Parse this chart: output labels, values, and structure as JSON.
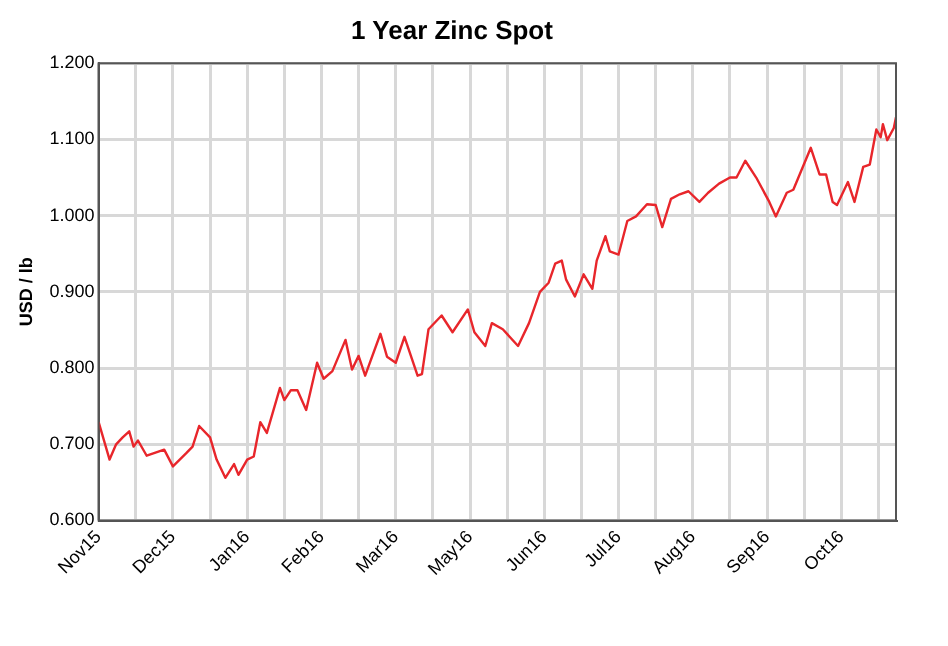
{
  "chart_data": {
    "type": "line",
    "title": "1 Year Zinc Spot",
    "ylabel": "USD / lb",
    "grid": true,
    "legend": false,
    "marker": "none",
    "line_style": "solid",
    "xlim": [
      "2015-11-13",
      "2016-11-12"
    ],
    "xticks": [
      {
        "value": "2015-11-13",
        "label": "Nov15"
      },
      {
        "value": "2015-11-30",
        "label": null
      },
      {
        "value": "2015-12-17",
        "label": "Dec15"
      },
      {
        "value": "2016-01-03",
        "label": null
      },
      {
        "value": "2016-01-20",
        "label": "Jan16"
      },
      {
        "value": "2016-02-06",
        "label": null
      },
      {
        "value": "2016-02-23",
        "label": "Feb16"
      },
      {
        "value": "2016-03-11",
        "label": null
      },
      {
        "value": "2016-03-28",
        "label": "Mar16"
      },
      {
        "value": "2016-04-14",
        "label": null
      },
      {
        "value": "2016-05-01",
        "label": "May16"
      },
      {
        "value": "2016-05-18",
        "label": null
      },
      {
        "value": "2016-06-04",
        "label": "Jun16"
      },
      {
        "value": "2016-06-21",
        "label": null
      },
      {
        "value": "2016-07-08",
        "label": "Jul16"
      },
      {
        "value": "2016-07-25",
        "label": null
      },
      {
        "value": "2016-08-11",
        "label": "Aug16"
      },
      {
        "value": "2016-08-28",
        "label": null
      },
      {
        "value": "2016-09-14",
        "label": "Sep16"
      },
      {
        "value": "2016-10-01",
        "label": null
      },
      {
        "value": "2016-10-18",
        "label": "Oct16"
      },
      {
        "value": "2016-11-04",
        "label": null
      }
    ],
    "ylim": [
      0.6,
      1.2
    ],
    "yticks": [
      {
        "value": 0.6,
        "label": "0.600"
      },
      {
        "value": 0.7,
        "label": "0.700"
      },
      {
        "value": 0.8,
        "label": "0.800"
      },
      {
        "value": 0.9,
        "label": "0.900"
      },
      {
        "value": 1.0,
        "label": "1.000"
      },
      {
        "value": 1.1,
        "label": "1.100"
      },
      {
        "value": 1.2,
        "label": "1.200"
      }
    ],
    "series": [
      {
        "color": "#e8262b",
        "x": [
          "2015-11-13",
          "2015-11-18",
          "2015-11-21",
          "2015-11-24",
          "2015-11-27",
          "2015-11-29",
          "2015-12-01",
          "2015-12-05",
          "2015-12-13",
          "2015-12-17",
          "2015-12-23",
          "2015-12-26",
          "2015-12-29",
          "2016-01-03",
          "2016-01-06",
          "2016-01-10",
          "2016-01-14",
          "2016-01-16",
          "2016-01-20",
          "2016-01-23",
          "2016-01-26",
          "2016-01-29",
          "2016-02-04",
          "2016-02-06",
          "2016-02-09",
          "2016-02-12",
          "2016-02-16",
          "2016-02-21",
          "2016-02-24",
          "2016-02-28",
          "2016-03-05",
          "2016-03-08",
          "2016-03-11",
          "2016-03-14",
          "2016-03-21",
          "2016-03-24",
          "2016-03-28",
          "2016-04-01",
          "2016-04-07",
          "2016-04-09",
          "2016-04-12",
          "2016-04-18",
          "2016-04-23",
          "2016-04-30",
          "2016-05-03",
          "2016-05-08",
          "2016-05-11",
          "2016-05-16",
          "2016-05-23",
          "2016-05-28",
          "2016-06-02",
          "2016-06-06",
          "2016-06-09",
          "2016-06-12",
          "2016-06-14",
          "2016-06-18",
          "2016-06-22",
          "2016-06-26",
          "2016-06-28",
          "2016-07-02",
          "2016-07-04",
          "2016-07-08",
          "2016-07-12",
          "2016-07-16",
          "2016-07-21",
          "2016-07-25",
          "2016-07-28",
          "2016-08-01",
          "2016-08-05",
          "2016-08-09",
          "2016-08-14",
          "2016-08-18",
          "2016-08-23",
          "2016-08-28",
          "2016-08-31",
          "2016-09-04",
          "2016-09-09",
          "2016-09-15",
          "2016-09-18",
          "2016-09-23",
          "2016-09-26",
          "2016-10-04",
          "2016-10-08",
          "2016-10-11",
          "2016-10-14",
          "2016-10-16",
          "2016-10-21",
          "2016-10-24",
          "2016-10-28",
          "2016-10-31",
          "2016-11-03",
          "2016-11-05",
          "2016-11-06",
          "2016-11-08",
          "2016-11-11",
          "2016-11-12"
        ],
        "values": [
          0.729,
          0.68,
          0.7,
          0.709,
          0.717,
          0.697,
          0.705,
          0.685,
          0.693,
          0.671,
          0.688,
          0.697,
          0.724,
          0.709,
          0.68,
          0.656,
          0.674,
          0.66,
          0.68,
          0.684,
          0.729,
          0.715,
          0.774,
          0.758,
          0.771,
          0.771,
          0.745,
          0.807,
          0.786,
          0.796,
          0.837,
          0.798,
          0.816,
          0.79,
          0.845,
          0.815,
          0.807,
          0.841,
          0.79,
          0.792,
          0.851,
          0.869,
          0.847,
          0.877,
          0.847,
          0.829,
          0.859,
          0.851,
          0.829,
          0.859,
          0.9,
          0.912,
          0.937,
          0.941,
          0.916,
          0.894,
          0.923,
          0.904,
          0.941,
          0.973,
          0.953,
          0.949,
          0.993,
          0.999,
          1.015,
          1.014,
          0.985,
          1.022,
          1.028,
          1.032,
          1.018,
          1.03,
          1.042,
          1.05,
          1.05,
          1.072,
          1.05,
          1.018,
          0.999,
          1.03,
          1.034,
          1.089,
          1.054,
          1.054,
          1.018,
          1.014,
          1.044,
          1.018,
          1.064,
          1.067,
          1.113,
          1.103,
          1.12,
          1.099,
          1.115,
          1.129
        ]
      }
    ]
  }
}
